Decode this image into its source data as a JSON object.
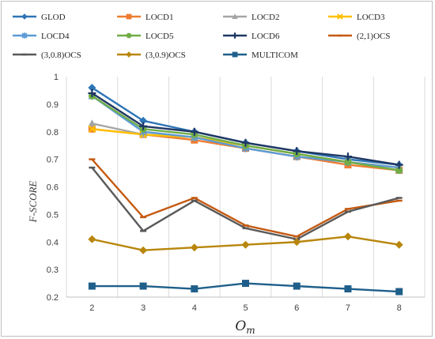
{
  "chart_data": {
    "type": "line",
    "title": "",
    "xlabel": "O_m",
    "xlabel_main": "O",
    "xlabel_sub": "m",
    "ylabel": "F-SCORE",
    "categories": [
      "2",
      "3",
      "4",
      "5",
      "6",
      "7",
      "8"
    ],
    "ylim": [
      0.2,
      1.0
    ],
    "yticks": [
      "0.2",
      "0.3",
      "0.4",
      "0.5",
      "0.6",
      "0.7",
      "0.8",
      "0.9",
      "1"
    ],
    "grid": "vertical",
    "legend_position": "top",
    "series": [
      {
        "name": "GLOD",
        "color": "#2e75b6",
        "marker": "diamond",
        "values": [
          0.96,
          0.84,
          0.8,
          0.76,
          0.73,
          0.7,
          0.68
        ]
      },
      {
        "name": "LOCD1",
        "color": "#ed7d31",
        "marker": "square",
        "values": [
          0.81,
          0.79,
          0.77,
          0.74,
          0.71,
          0.68,
          0.66
        ]
      },
      {
        "name": "LOCD2",
        "color": "#a5a5a5",
        "marker": "triangle",
        "values": [
          0.83,
          0.79,
          0.78,
          0.75,
          0.72,
          0.69,
          0.66
        ]
      },
      {
        "name": "LOCD3",
        "color": "#ffc000",
        "marker": "x",
        "values": [
          0.81,
          0.79,
          0.78,
          0.75,
          0.72,
          0.69,
          0.67
        ]
      },
      {
        "name": "LOCD4",
        "color": "#5b9bd5",
        "marker": "star",
        "values": [
          0.93,
          0.8,
          0.78,
          0.74,
          0.71,
          0.69,
          0.67
        ]
      },
      {
        "name": "LOCD5",
        "color": "#70ad47",
        "marker": "circle",
        "values": [
          0.93,
          0.81,
          0.79,
          0.75,
          0.72,
          0.69,
          0.66
        ]
      },
      {
        "name": "LOCD6",
        "color": "#1f3864",
        "marker": "plus",
        "values": [
          0.94,
          0.82,
          0.8,
          0.76,
          0.73,
          0.71,
          0.68
        ]
      },
      {
        "name": "(2,1)OCS",
        "color": "#c55a11",
        "marker": "dash",
        "values": [
          0.7,
          0.49,
          0.56,
          0.46,
          0.42,
          0.52,
          0.55
        ]
      },
      {
        "name": "(3,0.8)OCS",
        "color": "#595959",
        "marker": "dash",
        "values": [
          0.67,
          0.44,
          0.55,
          0.45,
          0.41,
          0.51,
          0.56
        ]
      },
      {
        "name": "(3,0.9)OCS",
        "color": "#b8860b",
        "marker": "diamond",
        "values": [
          0.41,
          0.37,
          0.38,
          0.39,
          0.4,
          0.42,
          0.39
        ]
      },
      {
        "name": "MULTICOM",
        "color": "#1f5f8b",
        "marker": "square",
        "values": [
          0.24,
          0.24,
          0.23,
          0.25,
          0.24,
          0.23,
          0.22
        ]
      }
    ]
  }
}
